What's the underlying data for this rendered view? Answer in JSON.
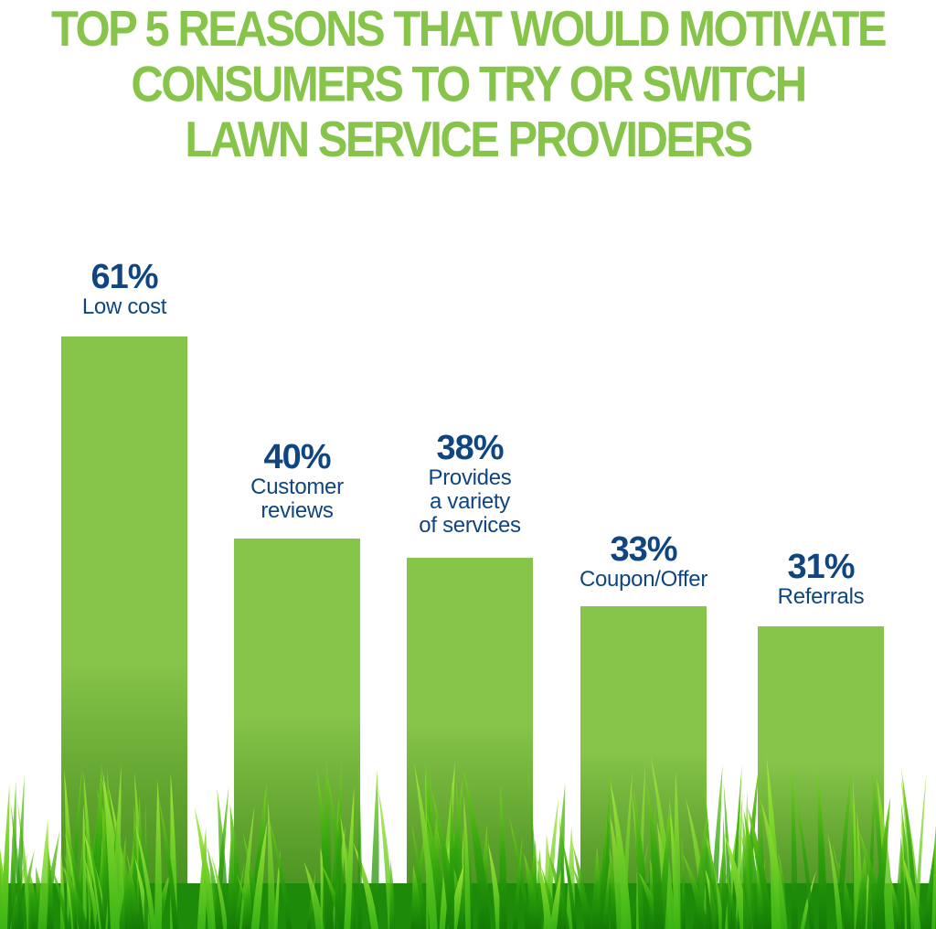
{
  "title": {
    "lines": [
      "TOP 5 REASONS THAT WOULD MOTIVATE",
      "CONSUMERS TO TRY OR SWITCH",
      "LAWN SERVICE PROVIDERS"
    ]
  },
  "bars": [
    {
      "pct": "61%",
      "desc_lines": [
        "Low cost"
      ]
    },
    {
      "pct": "40%",
      "desc_lines": [
        "Customer",
        "reviews"
      ]
    },
    {
      "pct": "38%",
      "desc_lines": [
        "Provides",
        "a variety",
        "of services"
      ]
    },
    {
      "pct": "33%",
      "desc_lines": [
        "Coupon/Offer"
      ]
    },
    {
      "pct": "31%",
      "desc_lines": [
        "Referrals"
      ]
    }
  ],
  "colors": {
    "title": "#86c44a",
    "bar": "#86c44a",
    "label": "#0f4581",
    "grass": "#2f9a0f"
  },
  "chart_data": {
    "type": "bar",
    "title": "Top 5 Reasons That Would Motivate Consumers to Try or Switch Lawn Service Providers",
    "categories": [
      "Low cost",
      "Customer reviews",
      "Provides a variety of services",
      "Coupon/Offer",
      "Referrals"
    ],
    "values": [
      61,
      40,
      38,
      33,
      31
    ],
    "unit": "%",
    "xlabel": "",
    "ylabel": "",
    "grid": false,
    "legend": "none",
    "data_labels": true
  }
}
